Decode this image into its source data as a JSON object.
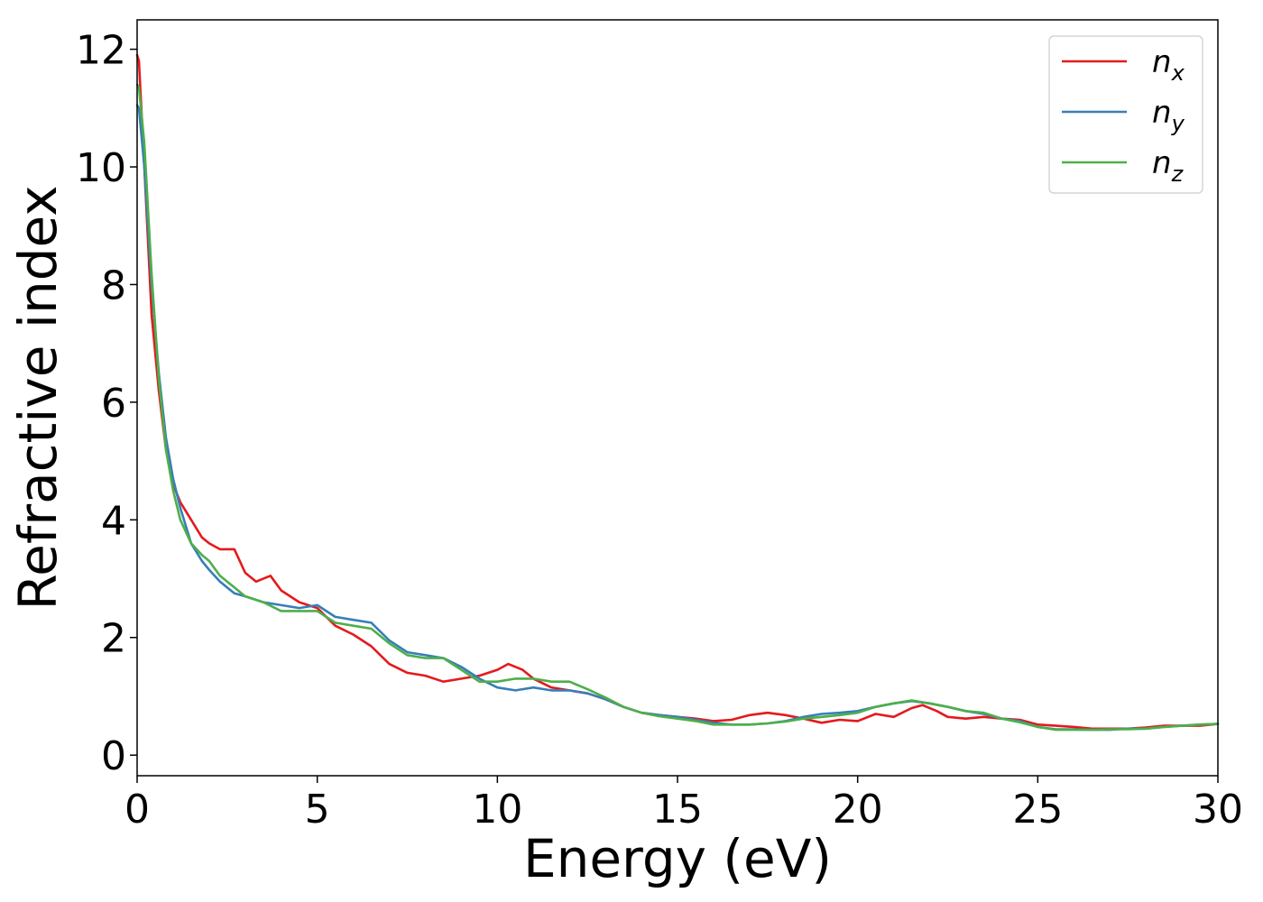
{
  "chart_data": {
    "type": "line",
    "xlabel": "Energy (eV)",
    "ylabel": "Refractive index",
    "xlim": [
      0,
      30
    ],
    "ylim": [
      -0.35,
      12.5
    ],
    "xticks": [
      0,
      5,
      10,
      15,
      20,
      25,
      30
    ],
    "yticks": [
      0,
      2,
      4,
      6,
      8,
      10,
      12
    ],
    "grid": false,
    "legend_position": "top-right",
    "series": [
      {
        "name": "n",
        "subscript": "x",
        "color": "#e41a1c",
        "x": [
          0,
          0.05,
          0.2,
          0.4,
          0.6,
          0.8,
          1.0,
          1.2,
          1.5,
          1.8,
          2.0,
          2.3,
          2.7,
          3.0,
          3.3,
          3.7,
          4.0,
          4.5,
          5.0,
          5.5,
          6.0,
          6.5,
          7.0,
          7.5,
          8.0,
          8.5,
          9.0,
          9.5,
          10.0,
          10.3,
          10.7,
          11.0,
          11.5,
          12.0,
          12.5,
          13.0,
          13.5,
          14.0,
          14.5,
          15.0,
          15.5,
          16.0,
          16.5,
          17.0,
          17.5,
          18.0,
          18.5,
          19.0,
          19.5,
          20.0,
          20.5,
          21.0,
          21.5,
          21.8,
          22.2,
          22.5,
          23.0,
          23.5,
          24.0,
          24.5,
          25.0,
          25.5,
          26.0,
          26.5,
          27.0,
          27.5,
          28.0,
          28.5,
          29.0,
          29.5,
          30.0
        ],
        "values": [
          11.9,
          11.8,
          10.0,
          7.5,
          6.2,
          5.2,
          4.6,
          4.3,
          4.0,
          3.7,
          3.6,
          3.5,
          3.5,
          3.1,
          2.95,
          3.05,
          2.8,
          2.6,
          2.5,
          2.2,
          2.05,
          1.85,
          1.55,
          1.4,
          1.35,
          1.25,
          1.3,
          1.35,
          1.45,
          1.55,
          1.45,
          1.3,
          1.15,
          1.1,
          1.05,
          0.95,
          0.82,
          0.72,
          0.68,
          0.65,
          0.62,
          0.58,
          0.6,
          0.68,
          0.72,
          0.68,
          0.62,
          0.55,
          0.6,
          0.58,
          0.7,
          0.65,
          0.8,
          0.85,
          0.75,
          0.65,
          0.62,
          0.65,
          0.62,
          0.6,
          0.52,
          0.5,
          0.48,
          0.45,
          0.45,
          0.45,
          0.47,
          0.5,
          0.5,
          0.5,
          0.53
        ]
      },
      {
        "name": "n",
        "subscript": "y",
        "color": "#377eb8",
        "x": [
          0,
          0.05,
          0.2,
          0.4,
          0.6,
          0.8,
          1.0,
          1.2,
          1.5,
          1.8,
          2.0,
          2.3,
          2.7,
          3.0,
          3.5,
          4.0,
          4.5,
          5.0,
          5.5,
          6.0,
          6.5,
          7.0,
          7.5,
          8.0,
          8.5,
          9.0,
          9.5,
          10.0,
          10.5,
          11.0,
          11.5,
          12.0,
          12.5,
          13.0,
          13.5,
          14.0,
          14.5,
          15.0,
          15.5,
          16.0,
          16.5,
          17.0,
          17.5,
          18.0,
          18.5,
          19.0,
          19.5,
          20.0,
          20.5,
          21.0,
          21.5,
          22.0,
          22.5,
          23.0,
          23.5,
          24.0,
          24.5,
          25.0,
          25.5,
          26.0,
          26.5,
          27.0,
          27.5,
          28.0,
          28.5,
          29.0,
          29.5,
          30.0
        ],
        "values": [
          11.05,
          11.0,
          10.0,
          8.0,
          6.5,
          5.4,
          4.7,
          4.2,
          3.6,
          3.3,
          3.15,
          2.95,
          2.75,
          2.7,
          2.6,
          2.55,
          2.5,
          2.55,
          2.35,
          2.3,
          2.25,
          1.95,
          1.75,
          1.7,
          1.65,
          1.5,
          1.3,
          1.15,
          1.1,
          1.15,
          1.1,
          1.1,
          1.05,
          0.95,
          0.82,
          0.72,
          0.68,
          0.65,
          0.6,
          0.55,
          0.52,
          0.52,
          0.54,
          0.58,
          0.65,
          0.7,
          0.72,
          0.75,
          0.82,
          0.88,
          0.92,
          0.88,
          0.82,
          0.75,
          0.7,
          0.62,
          0.58,
          0.48,
          0.44,
          0.44,
          0.43,
          0.43,
          0.45,
          0.45,
          0.48,
          0.5,
          0.52,
          0.53
        ]
      },
      {
        "name": "n",
        "subscript": "z",
        "color": "#4daf4a",
        "x": [
          0,
          0.05,
          0.2,
          0.4,
          0.6,
          0.8,
          1.0,
          1.2,
          1.5,
          1.8,
          2.0,
          2.3,
          2.7,
          3.0,
          3.5,
          4.0,
          4.5,
          5.0,
          5.5,
          6.0,
          6.5,
          7.0,
          7.5,
          8.0,
          8.5,
          9.0,
          9.5,
          10.0,
          10.5,
          11.0,
          11.5,
          12.0,
          12.5,
          13.0,
          13.5,
          14.0,
          14.5,
          15.0,
          15.5,
          16.0,
          16.5,
          17.0,
          17.5,
          18.0,
          18.5,
          19.0,
          19.5,
          20.0,
          20.5,
          21.0,
          21.5,
          22.0,
          22.5,
          23.0,
          23.5,
          24.0,
          24.5,
          25.0,
          25.5,
          26.0,
          26.5,
          27.0,
          27.5,
          28.0,
          28.5,
          29.0,
          29.5,
          30.0
        ],
        "values": [
          11.4,
          11.35,
          10.4,
          8.2,
          6.4,
          5.2,
          4.5,
          4.0,
          3.6,
          3.4,
          3.3,
          3.05,
          2.85,
          2.7,
          2.6,
          2.45,
          2.45,
          2.45,
          2.25,
          2.2,
          2.15,
          1.9,
          1.7,
          1.65,
          1.65,
          1.45,
          1.25,
          1.25,
          1.3,
          1.3,
          1.25,
          1.25,
          1.12,
          0.98,
          0.82,
          0.72,
          0.66,
          0.62,
          0.58,
          0.52,
          0.52,
          0.52,
          0.54,
          0.57,
          0.62,
          0.65,
          0.68,
          0.72,
          0.82,
          0.88,
          0.93,
          0.88,
          0.82,
          0.75,
          0.72,
          0.62,
          0.56,
          0.48,
          0.43,
          0.43,
          0.43,
          0.44,
          0.44,
          0.45,
          0.48,
          0.5,
          0.52,
          0.53
        ]
      }
    ]
  }
}
